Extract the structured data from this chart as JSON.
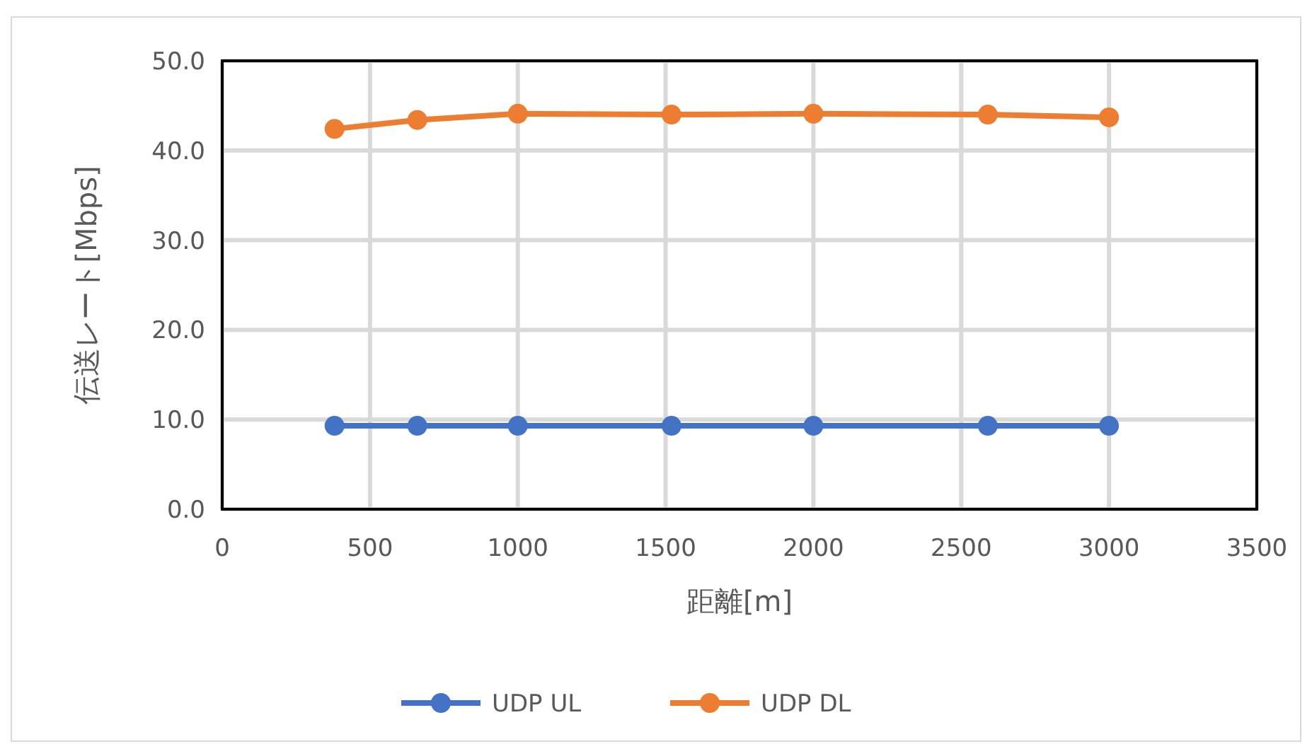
{
  "chart_data": {
    "type": "line",
    "xlabel": "距離[m]",
    "ylabel": "伝送レート[Mbps]",
    "xlim": [
      0,
      3500
    ],
    "xticks": [
      0,
      500,
      1000,
      1500,
      2000,
      2500,
      3000,
      3500
    ],
    "ylim": [
      0,
      50
    ],
    "yticks": [
      {
        "value": 0,
        "label": "0.0"
      },
      {
        "value": 10,
        "label": "10.0"
      },
      {
        "value": 20,
        "label": "20.0"
      },
      {
        "value": 30,
        "label": "30.0"
      },
      {
        "value": 40,
        "label": "40.0"
      },
      {
        "value": 50,
        "label": "50.0"
      }
    ],
    "grid": true,
    "legend": "bottom",
    "marker": "circle",
    "series": [
      {
        "name": "UDP UL",
        "color": "#4472c4",
        "x": [
          380,
          660,
          1000,
          1520,
          2000,
          2590,
          3000
        ],
        "values": [
          9.3,
          9.3,
          9.3,
          9.3,
          9.3,
          9.3,
          9.3
        ]
      },
      {
        "name": "UDP DL",
        "color": "#ed7d31",
        "x": [
          380,
          660,
          1000,
          1520,
          2000,
          2590,
          3000
        ],
        "values": [
          42.4,
          43.4,
          44.1,
          44.0,
          44.1,
          44.0,
          43.7
        ]
      }
    ]
  }
}
